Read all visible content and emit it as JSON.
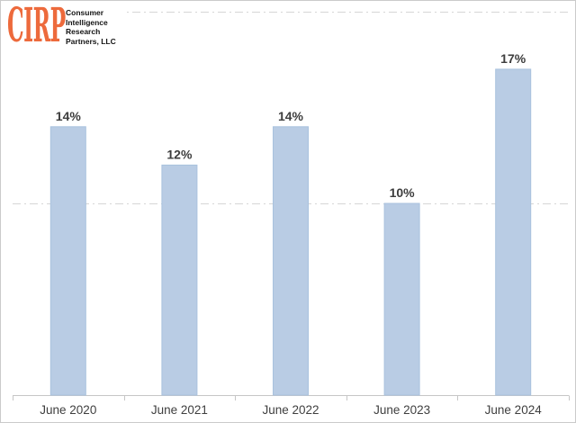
{
  "logo": {
    "brand": "CIRP",
    "brand_color": "#ED6A3C",
    "lines": [
      "Consumer",
      "Intelligence",
      "Research",
      "Partners, LLC"
    ]
  },
  "colors": {
    "bar_fill": "#B9CCE4",
    "bar_border": "#A9C2DE",
    "gridline": "#D6D6D6",
    "axis_line": "#C6C6C6",
    "value_label": "#3D3D3D",
    "axis_label": "#3F3F3F",
    "frame_border": "#CBCBCB",
    "background": "#FFFFFF"
  },
  "chart_data": {
    "type": "bar",
    "categories": [
      "June 2020",
      "June 2021",
      "June 2022",
      "June 2023",
      "June 2024"
    ],
    "values": [
      14,
      12,
      14,
      10,
      17
    ],
    "data_labels": [
      "14%",
      "12%",
      "14%",
      "10%",
      "17%"
    ],
    "title": "",
    "xlabel": "",
    "ylabel": "",
    "ylim": [
      0,
      20
    ],
    "gridlines_y": [
      10,
      20
    ],
    "gridline_style": "dash-dot",
    "grid": true,
    "legend": "none"
  }
}
